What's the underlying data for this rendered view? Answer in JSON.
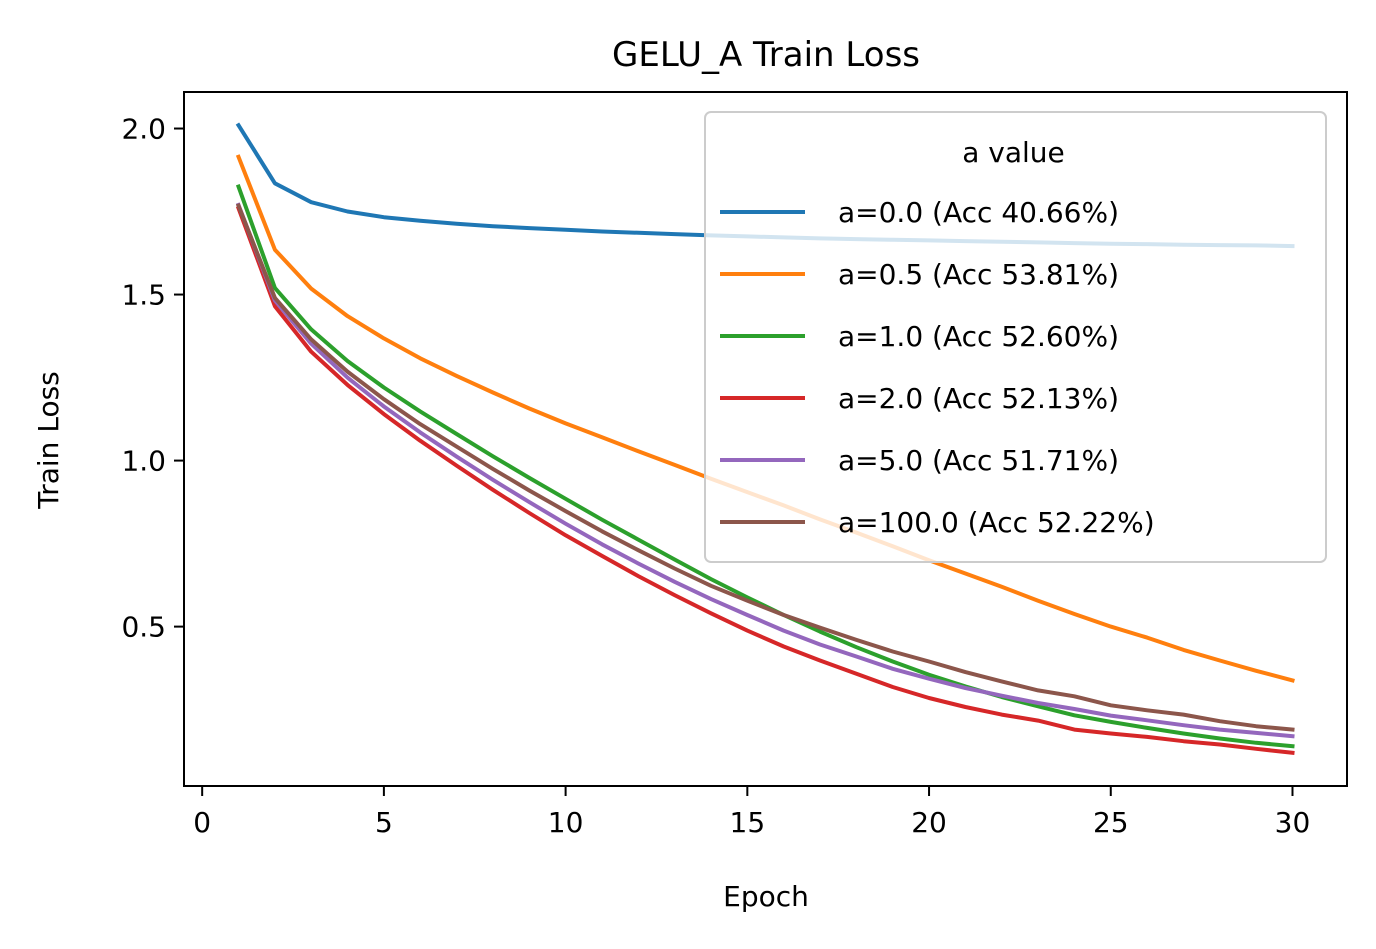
{
  "chart_data": {
    "type": "line",
    "title": "GELU_A Train Loss",
    "xlabel": "Epoch",
    "ylabel": "Train Loss",
    "xlim": [
      -0.5,
      31.5
    ],
    "ylim": [
      0.02,
      2.11
    ],
    "xticks": [
      0,
      5,
      10,
      15,
      20,
      25,
      30
    ],
    "yticks": [
      0.5,
      1.0,
      1.5,
      2.0
    ],
    "xtick_labels": [
      "0",
      "5",
      "10",
      "15",
      "20",
      "25",
      "30"
    ],
    "ytick_labels": [
      "0.5",
      "1.0",
      "1.5",
      "2.0"
    ],
    "grid": false,
    "legend": {
      "title": "a value",
      "placement": "upper right"
    },
    "x": [
      1,
      2,
      3,
      4,
      5,
      6,
      7,
      8,
      9,
      10,
      11,
      12,
      13,
      14,
      15,
      16,
      17,
      18,
      19,
      20,
      21,
      22,
      23,
      24,
      25,
      26,
      27,
      28,
      29,
      30
    ],
    "series": [
      {
        "name": "a=0.0 (Acc 40.66%)",
        "color": "#1f77b4",
        "values": [
          2.01,
          1.835,
          1.778,
          1.75,
          1.733,
          1.722,
          1.713,
          1.706,
          1.7,
          1.695,
          1.69,
          1.686,
          1.682,
          1.678,
          1.675,
          1.672,
          1.669,
          1.667,
          1.665,
          1.663,
          1.661,
          1.659,
          1.657,
          1.655,
          1.653,
          1.652,
          1.65,
          1.649,
          1.648,
          1.646
        ]
      },
      {
        "name": "a=0.5 (Acc 53.81%)",
        "color": "#ff7f0e",
        "values": [
          1.915,
          1.635,
          1.518,
          1.435,
          1.368,
          1.308,
          1.255,
          1.205,
          1.157,
          1.112,
          1.07,
          1.028,
          0.987,
          0.945,
          0.905,
          0.865,
          0.823,
          0.783,
          0.742,
          0.7,
          0.66,
          0.62,
          0.578,
          0.538,
          0.5,
          0.467,
          0.43,
          0.398,
          0.367,
          0.338
        ]
      },
      {
        "name": "a=1.0 (Acc 52.60%)",
        "color": "#2ca02c",
        "values": [
          1.825,
          1.52,
          1.395,
          1.3,
          1.22,
          1.148,
          1.08,
          1.013,
          0.948,
          0.885,
          0.822,
          0.762,
          0.702,
          0.643,
          0.588,
          0.535,
          0.485,
          0.438,
          0.395,
          0.355,
          0.32,
          0.288,
          0.26,
          0.233,
          0.213,
          0.195,
          0.178,
          0.163,
          0.15,
          0.14
        ]
      },
      {
        "name": "a=2.0 (Acc 52.13%)",
        "color": "#d62728",
        "values": [
          1.76,
          1.465,
          1.328,
          1.228,
          1.14,
          1.06,
          0.985,
          0.912,
          0.842,
          0.775,
          0.713,
          0.652,
          0.595,
          0.54,
          0.488,
          0.44,
          0.398,
          0.358,
          0.318,
          0.285,
          0.258,
          0.235,
          0.217,
          0.19,
          0.178,
          0.168,
          0.155,
          0.145,
          0.132,
          0.12
        ]
      },
      {
        "name": "a=5.0 (Acc 51.71%)",
        "color": "#9467bd",
        "values": [
          1.77,
          1.482,
          1.352,
          1.25,
          1.163,
          1.085,
          1.012,
          0.942,
          0.875,
          0.81,
          0.748,
          0.69,
          0.635,
          0.583,
          0.535,
          0.488,
          0.446,
          0.41,
          0.373,
          0.343,
          0.315,
          0.292,
          0.27,
          0.252,
          0.232,
          0.218,
          0.203,
          0.19,
          0.18,
          0.17
        ]
      },
      {
        "name": "a=100.0 (Acc 52.22%)",
        "color": "#8c564b",
        "values": [
          1.768,
          1.49,
          1.365,
          1.268,
          1.185,
          1.11,
          1.042,
          0.975,
          0.91,
          0.848,
          0.787,
          0.73,
          0.675,
          0.623,
          0.578,
          0.535,
          0.497,
          0.46,
          0.425,
          0.395,
          0.363,
          0.335,
          0.308,
          0.29,
          0.263,
          0.248,
          0.235,
          0.215,
          0.2,
          0.19
        ]
      }
    ]
  }
}
